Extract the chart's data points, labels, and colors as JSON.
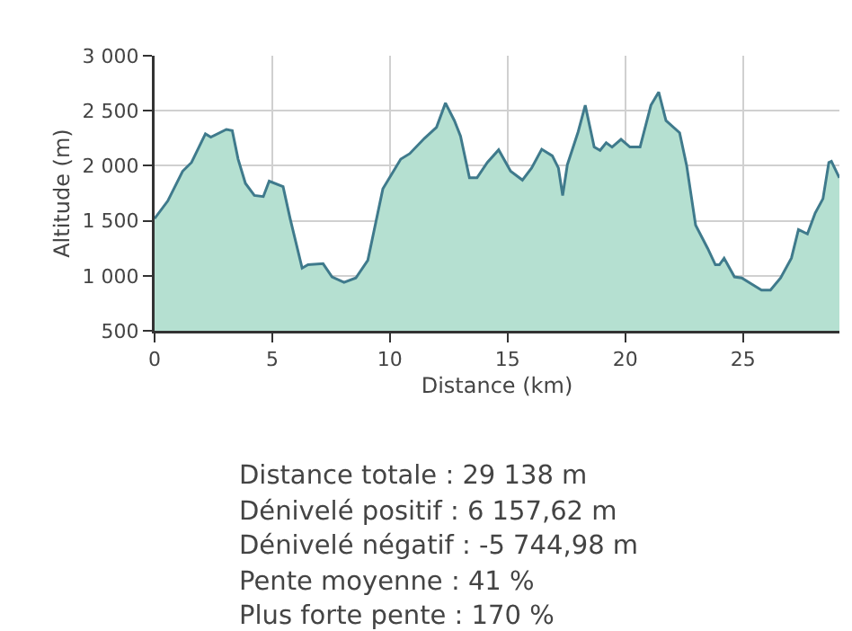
{
  "chart_data": {
    "type": "area",
    "xlabel": "Distance (km)",
    "ylabel": "Altitude (m)",
    "x": [
      0,
      0.56,
      1.19,
      1.57,
      2.16,
      2.39,
      3.05,
      3.3,
      3.55,
      3.86,
      4.24,
      4.62,
      4.87,
      5.46,
      5.76,
      6.27,
      6.52,
      7.16,
      7.54,
      8.05,
      8.55,
      9.06,
      9.7,
      10.46,
      10.84,
      11.47,
      11.98,
      12.36,
      12.74,
      13.0,
      13.38,
      13.7,
      14.14,
      14.62,
      15.13,
      15.63,
      16.02,
      16.45,
      16.9,
      17.16,
      17.34,
      17.54,
      18.0,
      18.3,
      18.68,
      18.93,
      19.19,
      19.44,
      19.82,
      20.2,
      20.63,
      21.09,
      21.42,
      21.73,
      22.31,
      22.61,
      22.99,
      23.5,
      23.83,
      24.0,
      24.2,
      24.64,
      24.95,
      25.4,
      25.79,
      26.17,
      26.6,
      27.06,
      27.36,
      27.74,
      28.07,
      28.4,
      28.65,
      28.76,
      29.1
    ],
    "series": [
      {
        "color": "#3f7a8c",
        "values": [
          1520,
          1680,
          1950,
          2030,
          2290,
          2260,
          2330,
          2320,
          2060,
          1840,
          1730,
          1720,
          1860,
          1810,
          1520,
          1070,
          1100,
          1110,
          990,
          940,
          980,
          1140,
          1790,
          2060,
          2110,
          2250,
          2350,
          2570,
          2410,
          2270,
          1890,
          1890,
          2030,
          2145,
          1950,
          1870,
          1980,
          2150,
          2090,
          1980,
          1730,
          2010,
          2310,
          2550,
          2170,
          2140,
          2210,
          2170,
          2240,
          2170,
          2170,
          2550,
          2670,
          2410,
          2300,
          2000,
          1460,
          1250,
          1100,
          1100,
          1160,
          990,
          980,
          920,
          870,
          870,
          980,
          1160,
          1420,
          1380,
          1570,
          1700,
          2030,
          2040,
          1890
        ]
      }
    ],
    "xlim": [
      0,
      29.1
    ],
    "xticks": [
      0,
      5,
      10,
      15,
      20,
      25
    ],
    "ylim": [
      500,
      3000
    ],
    "yticks": [
      {
        "value": 500,
        "label": "500"
      },
      {
        "value": 1000,
        "label": "1 000"
      },
      {
        "value": 1500,
        "label": "1 500"
      },
      {
        "value": 2000,
        "label": "2 000"
      },
      {
        "value": 2500,
        "label": "2 500"
      },
      {
        "value": 3000,
        "label": "3 000"
      }
    ],
    "grid": true,
    "marker": "none",
    "annotations": [
      "Distance totale : 29 138 m",
      "Dénivelé positif : 6 157,62 m",
      "Dénivelé négatif : -5 744,98 m",
      "Pente moyenne : 41 %",
      "Plus forte pente : 170 %"
    ]
  }
}
